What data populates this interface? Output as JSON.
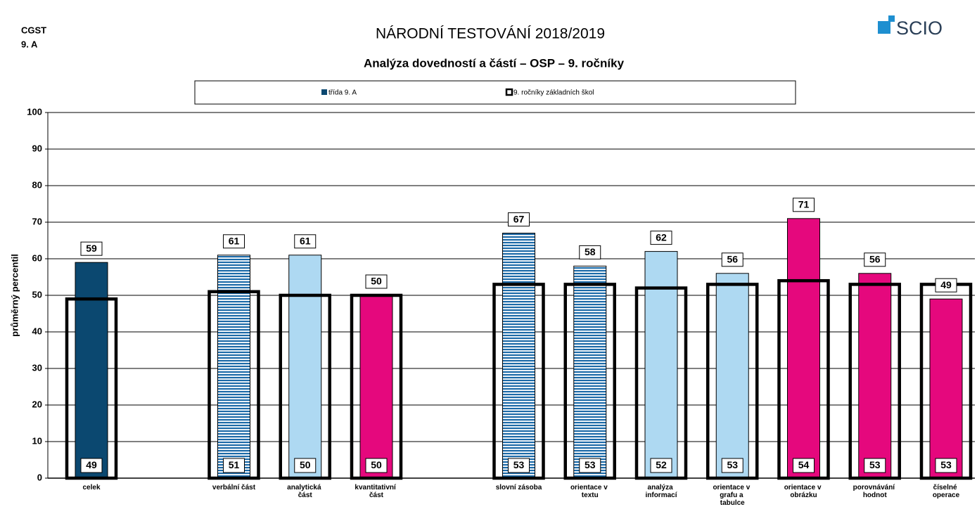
{
  "header": {
    "school": "CGST",
    "class": "9. A",
    "logo": "SCIO"
  },
  "chart_data": {
    "type": "bar",
    "title": "NÁRODNÍ TESTOVÁNÍ 2018/2019",
    "subtitle": "Analýza dovedností a částí – OSP – 9. ročníky",
    "ylabel": "průměrný percentil",
    "categories": [
      "celek",
      null,
      "verbální část",
      "analytická část",
      "kvantitativní část",
      null,
      "slovní zásoba",
      "orientace v textu",
      "analýza informací",
      "orientace v grafu a tabulce",
      "orientace v obrázku",
      "porovnávání hodnot",
      "číselné operace"
    ],
    "series": [
      {
        "name": "třída  9. A",
        "color": "#0b4870",
        "style": "filled",
        "values": [
          59,
          null,
          61,
          61,
          50,
          null,
          67,
          58,
          62,
          56,
          71,
          56,
          49
        ],
        "colors": [
          "#0b4870",
          null,
          "#1c6aa8",
          "#aed9f2",
          "#e5087d",
          null,
          "#1c6aa8",
          "#1c6aa8",
          "#aed9f2",
          "#aed9f2",
          "#e5087d",
          "#e5087d",
          "#e5087d"
        ],
        "striped": [
          false,
          null,
          true,
          false,
          false,
          null,
          true,
          true,
          false,
          false,
          false,
          false,
          false
        ]
      },
      {
        "name": "9. ročníky základních škol",
        "color": "#000000",
        "style": "outline",
        "values": [
          49,
          null,
          51,
          50,
          50,
          null,
          53,
          53,
          52,
          53,
          54,
          53,
          53
        ]
      }
    ],
    "ylim": [
      0,
      100
    ],
    "yticks": [
      0,
      10,
      20,
      30,
      40,
      50,
      60,
      70,
      80,
      90,
      100
    ],
    "grid": true,
    "legend": "top"
  }
}
